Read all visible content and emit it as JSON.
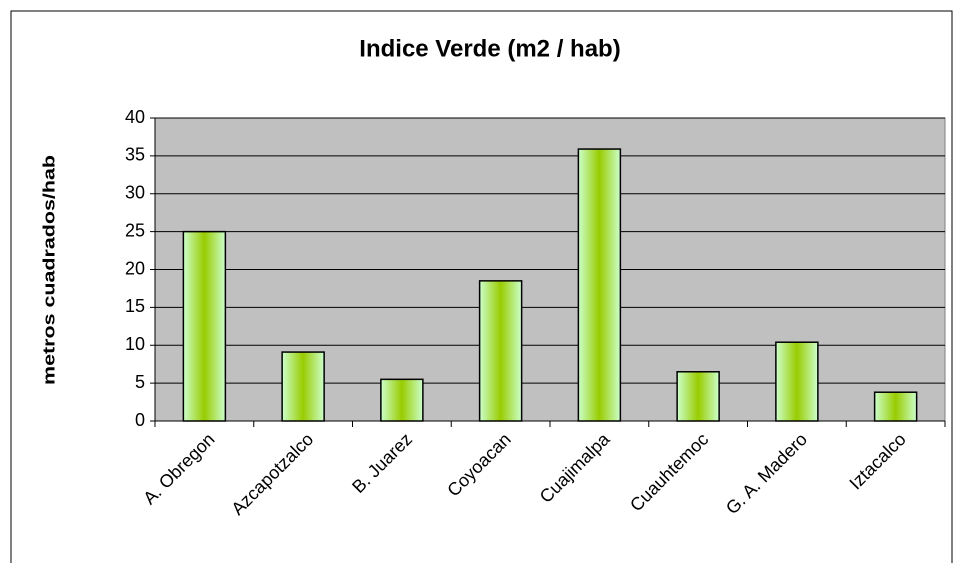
{
  "chart_data": {
    "type": "bar",
    "title": "Indice Verde  (m2 / hab)",
    "y_label": "metros cuadrados/hab",
    "categories": [
      "A. Obregon",
      "Azcapotzalco",
      "B. Juarez",
      "Coyoacan",
      "Cuajimalpa",
      "Cuauhtemoc",
      "G. A. Madero",
      "Iztacalco"
    ],
    "values": [
      25,
      9.1,
      5.5,
      18.5,
      35.9,
      6.5,
      10.4,
      3.8
    ],
    "color": "#99cc00",
    "ylim": [
      0,
      40
    ],
    "yticks": [
      0,
      5,
      10,
      15,
      20,
      25,
      30,
      35,
      40
    ],
    "grid": true
  }
}
